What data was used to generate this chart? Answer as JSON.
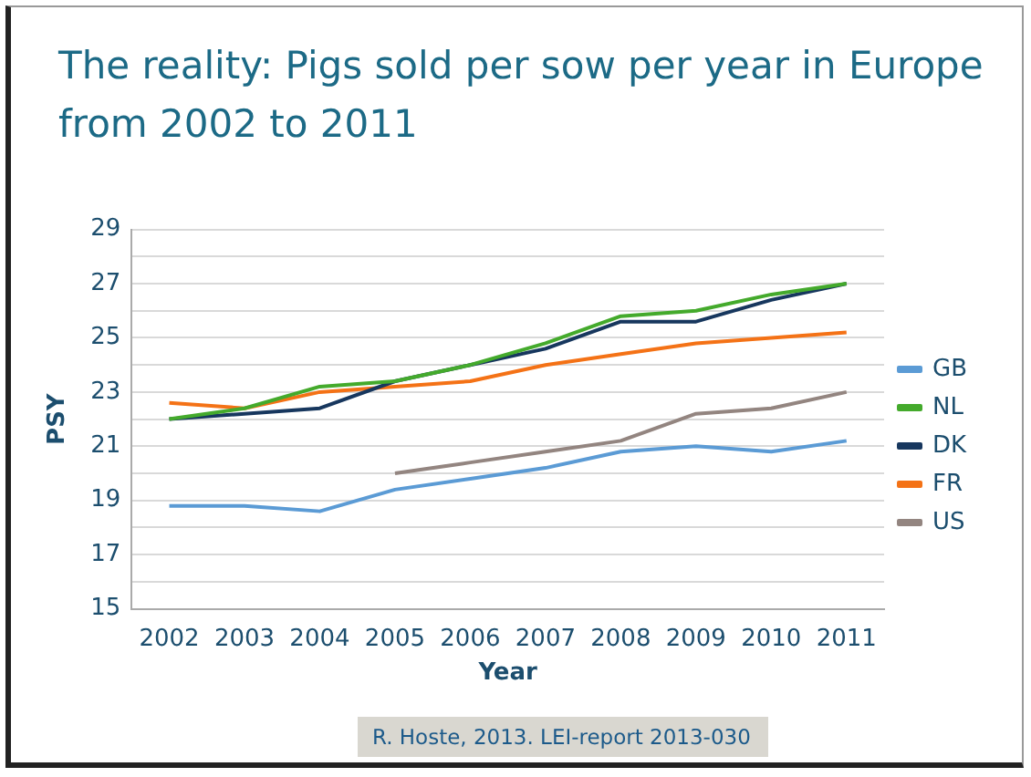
{
  "chart_data": {
    "type": "line",
    "title": "The reality: Pigs sold per sow per year in Europe from 2002 to 2011",
    "categories": [
      "2002",
      "2003",
      "2004",
      "2005",
      "2006",
      "2007",
      "2008",
      "2009",
      "2010",
      "2011"
    ],
    "series": [
      {
        "name": "GB",
        "color": "#5b9bd5",
        "values": [
          18.8,
          18.8,
          18.6,
          19.4,
          19.8,
          20.2,
          20.8,
          21.0,
          20.8,
          21.2
        ]
      },
      {
        "name": "NL",
        "color": "#44aa2c",
        "values": [
          22.0,
          22.4,
          23.2,
          23.4,
          24.0,
          24.8,
          25.8,
          26.0,
          26.6,
          27.0
        ]
      },
      {
        "name": "DK",
        "color": "#17375e",
        "values": [
          22.0,
          22.2,
          22.4,
          23.4,
          24.0,
          24.6,
          25.6,
          25.6,
          26.4,
          27.0
        ]
      },
      {
        "name": "FR",
        "color": "#f47216",
        "values": [
          22.6,
          22.4,
          23.0,
          23.2,
          23.4,
          24.0,
          24.4,
          24.8,
          25.0,
          25.2
        ]
      },
      {
        "name": "US",
        "color": "#938580",
        "values": [
          null,
          null,
          null,
          20.0,
          20.4,
          20.8,
          21.2,
          22.2,
          22.4,
          23.0
        ]
      }
    ],
    "xlabel": "Year",
    "ylabel": "PSY",
    "ylim": [
      15,
      29
    ],
    "yticks": [
      15,
      {
        "value": 16,
        "label": null
      },
      17,
      {
        "value": 18,
        "label": null
      },
      19,
      {
        "value": 20,
        "label": null
      },
      21,
      {
        "value": 22,
        "label": null
      },
      23,
      {
        "value": 24,
        "label": null
      },
      25,
      {
        "value": 26,
        "label": null
      },
      27,
      {
        "value": 28,
        "label": null
      },
      29
    ],
    "grid": "y",
    "legend": "right",
    "marker": "none",
    "line_style": "solid",
    "annotations": [
      "R. Hoste, 2013. LEI-report 2013-030"
    ]
  }
}
